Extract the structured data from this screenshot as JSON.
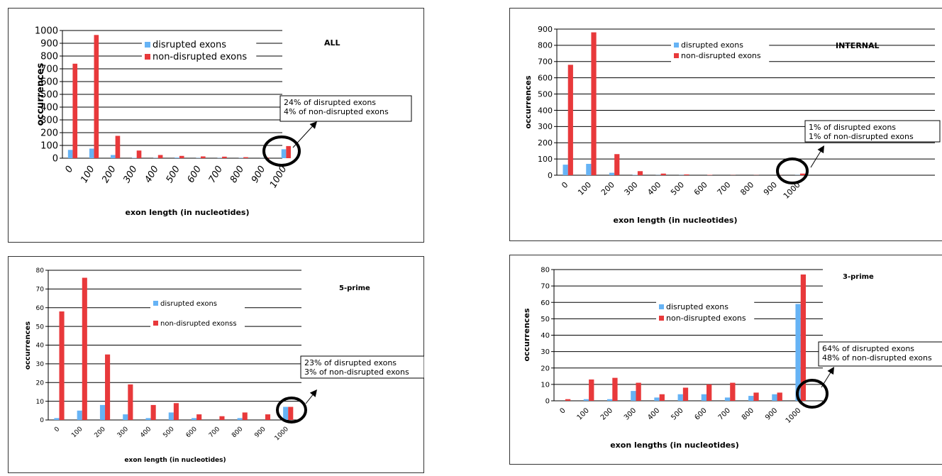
{
  "colors": {
    "disrupted": "#66b3f5",
    "non_disrupted": "#e8393b",
    "frame": "#333333"
  },
  "chart_data": [
    {
      "type": "bar",
      "title": "ALL",
      "xlabel": "exon length (in nucleotides)",
      "ylabel": "occurrences",
      "ylim": [
        0,
        1000
      ],
      "yticks": [
        0,
        100,
        200,
        300,
        400,
        500,
        600,
        700,
        800,
        900,
        1000
      ],
      "categories": [
        "0",
        "100",
        "200",
        "300",
        "400",
        "500",
        "600",
        "700",
        "800",
        "900",
        "1000"
      ],
      "series": [
        {
          "name": "disrupted exons",
          "values": [
            65,
            75,
            25,
            3,
            2,
            5,
            2,
            2,
            2,
            1,
            70
          ]
        },
        {
          "name": "non-disrupted exons",
          "values": [
            740,
            965,
            175,
            60,
            25,
            18,
            14,
            12,
            8,
            5,
            95
          ]
        }
      ],
      "legend": "top-center",
      "annotation": [
        "24% of disrupted exons",
        "4% of non-disrupted exons"
      ],
      "grid": true
    },
    {
      "type": "bar",
      "title": "INTERNAL",
      "xlabel": "exon length (in nucleotides)",
      "ylabel": "occurrences",
      "ylim": [
        0,
        900
      ],
      "yticks": [
        0,
        100,
        200,
        300,
        400,
        500,
        600,
        700,
        800,
        900
      ],
      "categories": [
        "0",
        "100",
        "200",
        "300",
        "400",
        "500",
        "600",
        "700",
        "800",
        "900",
        "1000"
      ],
      "series": [
        {
          "name": "disrupted exons",
          "values": [
            65,
            70,
            15,
            2,
            1,
            1,
            0,
            0,
            0,
            0,
            1
          ]
        },
        {
          "name": "non-disrupted exons",
          "values": [
            680,
            880,
            130,
            25,
            10,
            5,
            2,
            1,
            1,
            1,
            10
          ]
        }
      ],
      "legend": "top-center",
      "annotation": [
        "1% of disrupted exons",
        "1% of non-disrupted exons"
      ],
      "grid": true
    },
    {
      "type": "bar",
      "title": "5-prime",
      "xlabel": "exon length (in nucleotides)",
      "ylabel": "occurrences",
      "ylim": [
        0,
        80
      ],
      "yticks": [
        0,
        10,
        20,
        30,
        40,
        50,
        60,
        70,
        80
      ],
      "categories": [
        "0",
        "100",
        "200",
        "300",
        "400",
        "500",
        "600",
        "700",
        "800",
        "900",
        "1000"
      ],
      "series": [
        {
          "name": "disrupted exons",
          "values": [
            1,
            5,
            8,
            3,
            1,
            4,
            1,
            0,
            1,
            0,
            7
          ]
        },
        {
          "name": "non-disrupted exonss",
          "values": [
            58,
            76,
            35,
            19,
            8,
            9,
            3,
            2,
            4,
            3,
            7
          ]
        }
      ],
      "legend": "top-center",
      "annotation": [
        "23% of disrupted exons",
        "3% of non-disrupted exons"
      ],
      "grid": true
    },
    {
      "type": "bar",
      "title": "3-prime",
      "xlabel": "exon lengths (in nucleotides)",
      "ylabel": "occurrences",
      "ylim": [
        0,
        80
      ],
      "yticks": [
        0,
        10,
        20,
        30,
        40,
        50,
        60,
        70,
        80
      ],
      "categories": [
        "0",
        "100",
        "200",
        "300",
        "400",
        "500",
        "600",
        "700",
        "800",
        "900",
        "1000"
      ],
      "series": [
        {
          "name": "disrupted exons",
          "values": [
            0,
            1,
            1,
            6,
            2,
            4,
            4,
            2,
            3,
            4,
            59
          ]
        },
        {
          "name": "non-disrupted exons",
          "values": [
            1,
            13,
            14,
            11,
            4,
            8,
            10,
            11,
            5,
            5,
            77
          ]
        }
      ],
      "legend": "top-center",
      "annotation": [
        "64% of disrupted exons",
        "48% of non-disrupted exons"
      ],
      "grid": true
    }
  ]
}
